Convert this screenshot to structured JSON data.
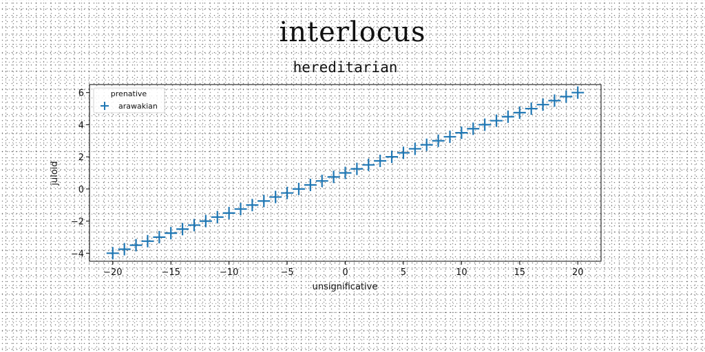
{
  "figure": {
    "suptitle": "interlocus"
  },
  "chart_data": {
    "type": "scatter",
    "marker": "plus",
    "title": "hereditarian",
    "xlabel": "unsignificative",
    "ylabel": "juloid",
    "xlim": [
      -22,
      22
    ],
    "ylim": [
      -4.5,
      6.5
    ],
    "xticks": [
      -20,
      -15,
      -10,
      -5,
      0,
      5,
      10,
      15,
      20
    ],
    "yticks": [
      -4,
      -2,
      0,
      2,
      4,
      6
    ],
    "xtick_labels": [
      "−20",
      "−15",
      "−10",
      "−5",
      "0",
      "5",
      "10",
      "15",
      "20"
    ],
    "ytick_labels": [
      "−4",
      "−2",
      "0",
      "2",
      "4",
      "6"
    ],
    "grid": false,
    "legend": {
      "title": "prenative",
      "placement": "top-left"
    },
    "series": [
      {
        "name": "arawakian",
        "color": "#1f77b4",
        "x": [
          -20,
          -19,
          -18,
          -17,
          -16,
          -15,
          -14,
          -13,
          -12,
          -11,
          -10,
          -9,
          -8,
          -7,
          -6,
          -5,
          -4,
          -3,
          -2,
          -1,
          0,
          1,
          2,
          3,
          4,
          5,
          6,
          7,
          8,
          9,
          10,
          11,
          12,
          13,
          14,
          15,
          16,
          17,
          18,
          19,
          20
        ],
        "y": [
          -4.0,
          -3.75,
          -3.5,
          -3.25,
          -3.0,
          -2.75,
          -2.5,
          -2.25,
          -2.0,
          -1.75,
          -1.5,
          -1.25,
          -1.0,
          -0.75,
          -0.5,
          -0.25,
          0.0,
          0.25,
          0.5,
          0.75,
          1.0,
          1.25,
          1.5,
          1.75,
          2.0,
          2.25,
          2.5,
          2.75,
          3.0,
          3.25,
          3.5,
          3.75,
          4.0,
          4.25,
          4.5,
          4.75,
          5.0,
          5.25,
          5.5,
          5.75,
          6.0
        ]
      }
    ]
  }
}
